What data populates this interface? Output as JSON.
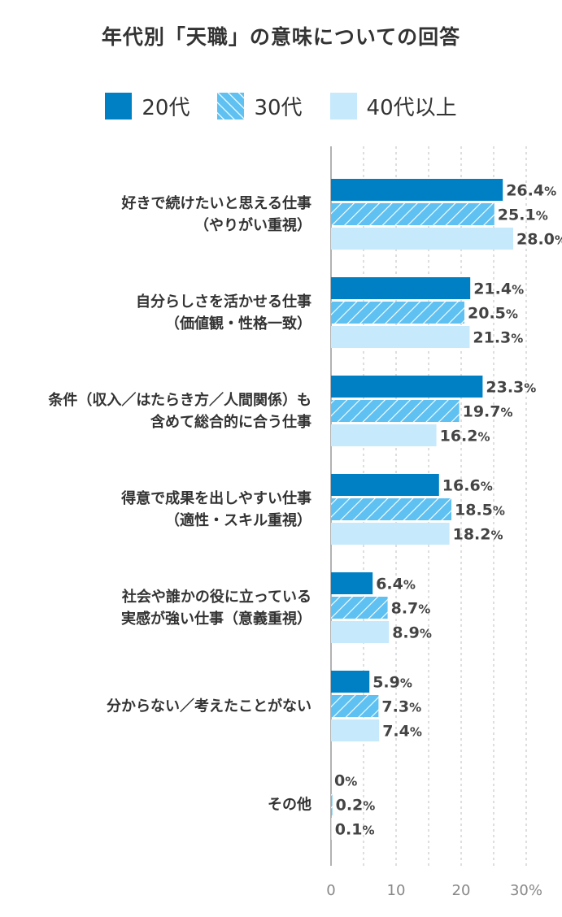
{
  "chart_data": {
    "type": "bar",
    "orientation": "horizontal",
    "title": "年代別「天職」の意味についての回答",
    "categories": [
      [
        "好きで続けたいと思える仕事",
        "（やりがい重視）"
      ],
      [
        "自分らしさを活かせる仕事",
        "（価値観・性格一致）"
      ],
      [
        "条件（収入／はたらき方／人間関係）も",
        "含めて総合的に合う仕事"
      ],
      [
        "得意で成果を出しやすい仕事",
        "（適性・スキル重視）"
      ],
      [
        "社会や誰かの役に立っている",
        "実感が強い仕事（意義重視）"
      ],
      [
        "分からない／考えたことがない"
      ],
      [
        "その他"
      ]
    ],
    "series": [
      {
        "name": "20代",
        "values": [
          26.4,
          21.4,
          23.3,
          16.6,
          6.4,
          5.9,
          0
        ],
        "labels": [
          "26.4",
          "21.4",
          "23.3",
          "16.6",
          "6.4",
          "5.9",
          "0"
        ],
        "color": "#0080c4",
        "pattern": "solid"
      },
      {
        "name": "30代",
        "values": [
          25.1,
          20.5,
          19.7,
          18.5,
          8.7,
          7.3,
          0.2
        ],
        "labels": [
          "25.1",
          "20.5",
          "19.7",
          "18.5",
          "8.7",
          "7.3",
          "0.2"
        ],
        "color": "#5ec1f1",
        "pattern": "hatched"
      },
      {
        "name": "40代以上",
        "values": [
          28.0,
          21.3,
          16.2,
          18.2,
          8.9,
          7.4,
          0.1
        ],
        "labels": [
          "28.0",
          "21.3",
          "16.2",
          "18.2",
          "8.9",
          "7.4",
          "0.1"
        ],
        "color": "#c6e9fb",
        "pattern": "solid"
      }
    ],
    "value_suffix": "%",
    "xlim": [
      0,
      30
    ],
    "xticks": [
      "0",
      "10",
      "20",
      "30%"
    ],
    "grid": true,
    "legend_position": "top"
  }
}
